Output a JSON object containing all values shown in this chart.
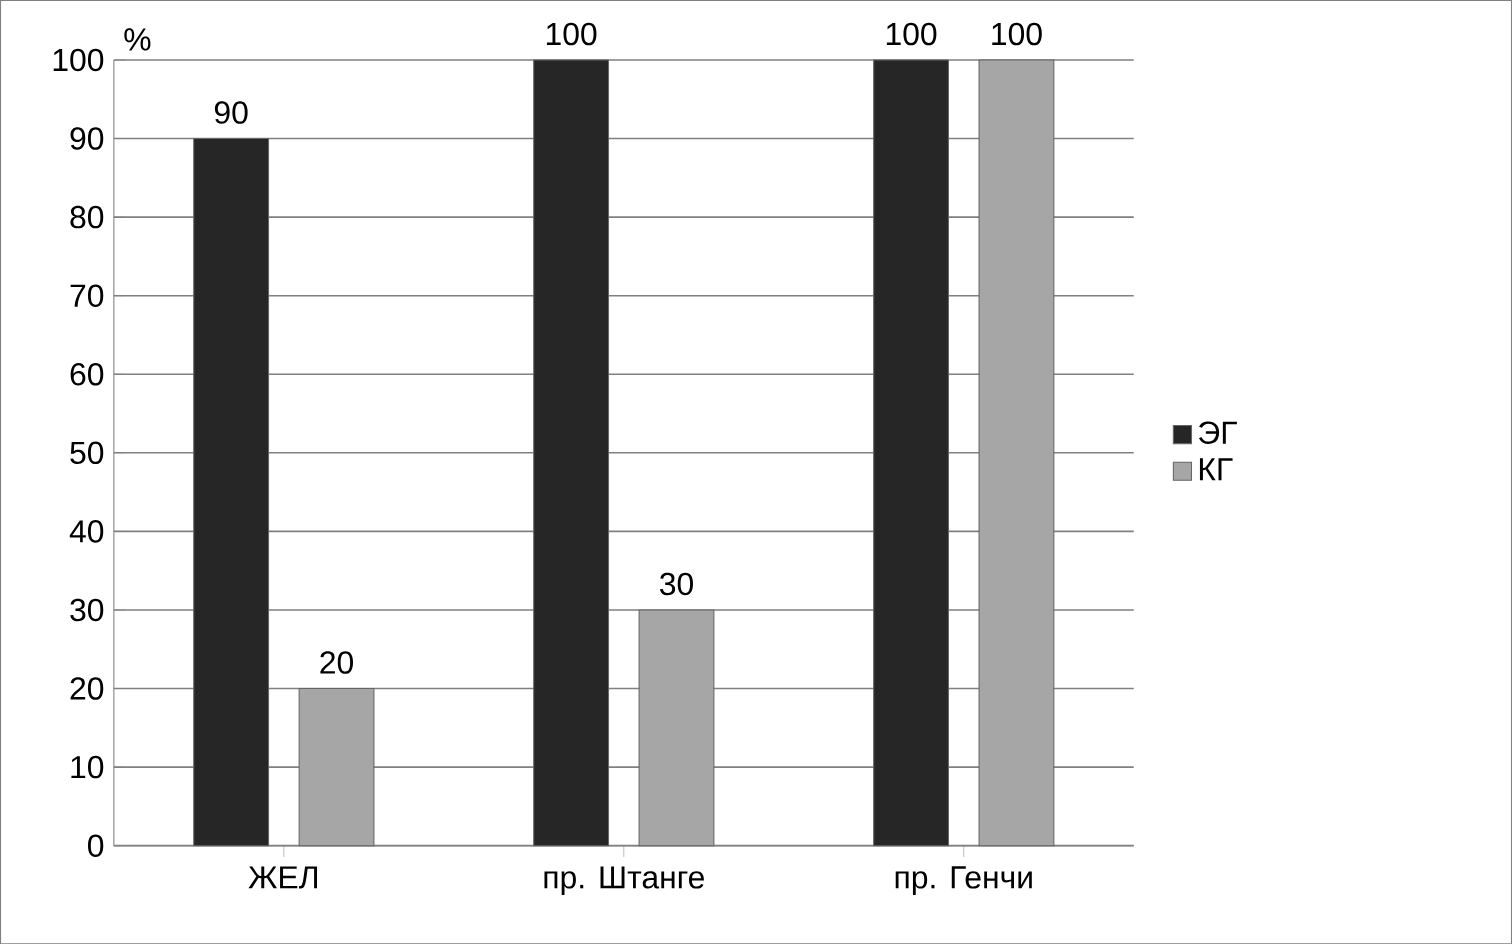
{
  "chart_data": {
    "type": "bar",
    "ylabel": "%",
    "categories": [
      "ЖЕЛ",
      "пр. Штанге",
      "пр. Генчи"
    ],
    "series": [
      {
        "name": "ЭГ",
        "color": "#262626",
        "values": [
          90,
          100,
          100
        ]
      },
      {
        "name": "КГ",
        "color": "#a6a6a6",
        "values": [
          20,
          30,
          100
        ]
      }
    ],
    "ylim": [
      0,
      100
    ],
    "yticks": [
      0,
      10,
      20,
      30,
      40,
      50,
      60,
      70,
      80,
      90,
      100
    ],
    "grid": "y",
    "legend": "right",
    "data_labels": true
  }
}
